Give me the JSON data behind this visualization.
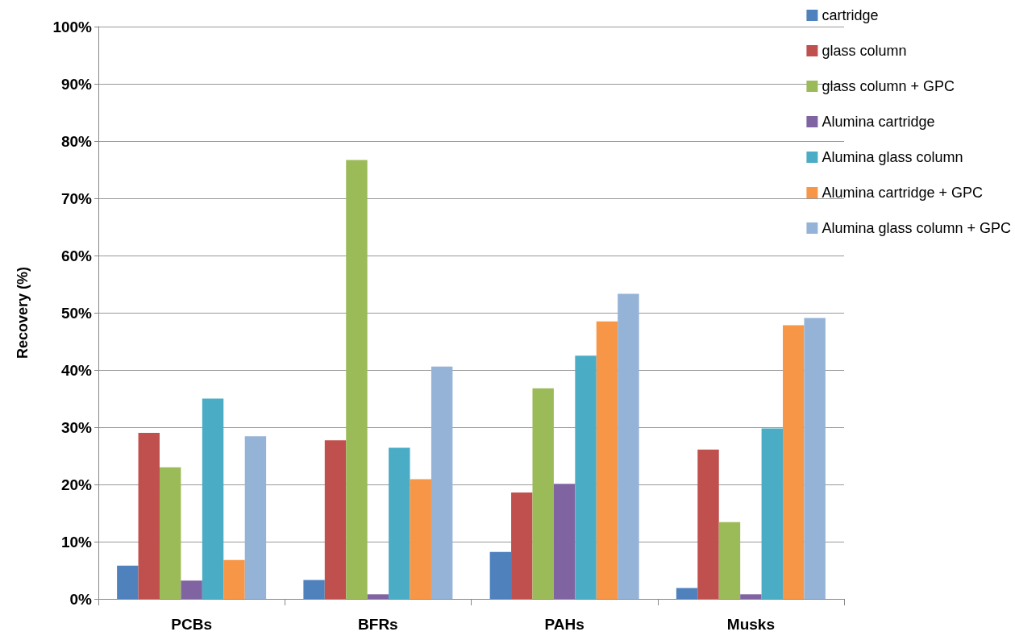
{
  "chart_data": {
    "type": "bar",
    "ylabel": "Recovery (%)",
    "categories": [
      "PCBs",
      "BFRs",
      "PAHs",
      "Musks"
    ],
    "series": [
      {
        "name": "cartridge",
        "color": "#4f81bd",
        "values": [
          5.8,
          3.3,
          8.2,
          1.9
        ]
      },
      {
        "name": "glass column",
        "color": "#c0504d",
        "values": [
          29,
          27.7,
          18.6,
          26.1
        ]
      },
      {
        "name": "glass column + GPC",
        "color": "#9bbb59",
        "values": [
          23,
          76.7,
          36.8,
          13.4
        ]
      },
      {
        "name": "Alumina cartridge",
        "color": "#8064a2",
        "values": [
          3.2,
          0.8,
          20.1,
          0.8
        ]
      },
      {
        "name": "Alumina glass column",
        "color": "#4bacc6",
        "values": [
          35,
          26.4,
          42.5,
          29.8
        ]
      },
      {
        "name": "Alumina cartridge + GPC",
        "color": "#f79646",
        "values": [
          6.8,
          20.9,
          48.5,
          47.8
        ]
      },
      {
        "name": "Alumina glass column + GPC",
        "color": "#95b3d7",
        "values": [
          28.4,
          40.6,
          53.3,
          49.1
        ]
      }
    ],
    "ylim": [
      0,
      100
    ],
    "yticks": [
      {
        "value": 0,
        "label": "0%"
      },
      {
        "value": 10,
        "label": "10%"
      },
      {
        "value": 20,
        "label": "20%"
      },
      {
        "value": 30,
        "label": "30%"
      },
      {
        "value": 40,
        "label": "40%"
      },
      {
        "value": 50,
        "label": "50%"
      },
      {
        "value": 60,
        "label": "60%"
      },
      {
        "value": 70,
        "label": "70%"
      },
      {
        "value": 80,
        "label": "80%"
      },
      {
        "value": 90,
        "label": "90%"
      },
      {
        "value": 100,
        "label": "100%"
      }
    ],
    "grid": "y",
    "legend": "top right"
  }
}
